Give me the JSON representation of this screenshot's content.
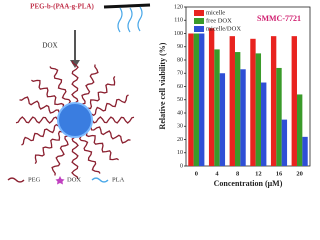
{
  "diagram": {
    "polymer_label": "PEG-b-(PAA-g-PLA)",
    "arrow_label": "DOX",
    "legend": [
      "PEG",
      "DOX",
      "PLA"
    ]
  },
  "chart_data": {
    "type": "bar",
    "annotation": "SMMC-7721",
    "xlabel": "Concentration (μM)",
    "ylabel": "Relative cell viability (%)",
    "categories": [
      "0",
      "4",
      "8",
      "12",
      "16",
      "20"
    ],
    "series": [
      {
        "name": "micelle",
        "color": "#e8231f",
        "values": [
          100,
          104,
          98,
          96,
          98,
          98
        ]
      },
      {
        "name": "free DOX",
        "color": "#3a9a2a",
        "values": [
          100,
          88,
          86,
          85,
          74,
          54
        ]
      },
      {
        "name": "micelle/DOX",
        "color": "#2f4fd6",
        "values": [
          100,
          70,
          73,
          63,
          35,
          22
        ]
      }
    ],
    "ylim": [
      0,
      120
    ],
    "yticks": [
      0,
      10,
      20,
      30,
      40,
      50,
      60,
      70,
      80,
      90,
      100,
      110,
      120
    ],
    "legend": "upper left"
  }
}
